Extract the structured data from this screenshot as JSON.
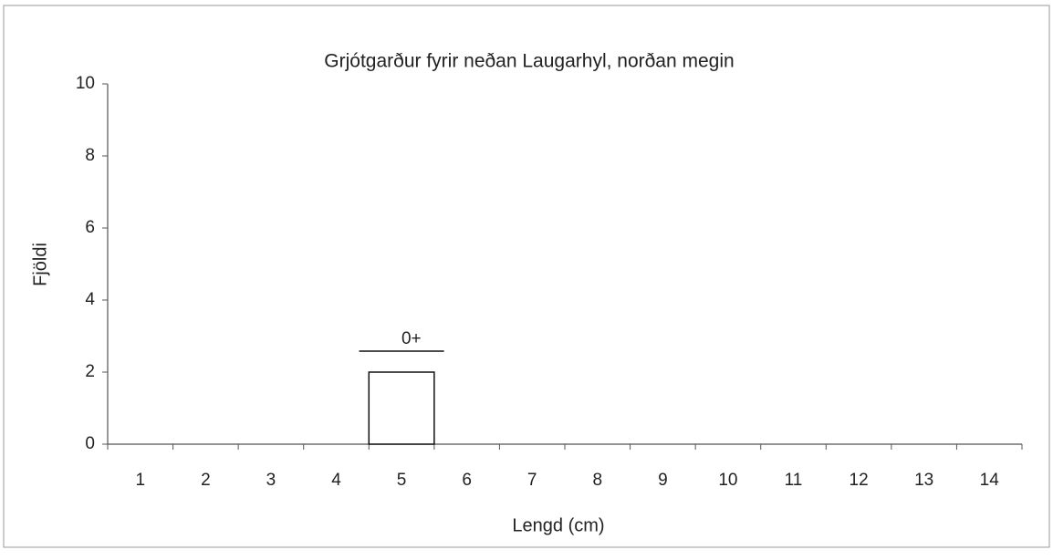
{
  "chart_data": {
    "type": "bar",
    "title": "Grjótgarður fyrir neðan Laugarhyl, norðan megin",
    "x_label": "Lengd (cm)",
    "y_label": "Fjöldi",
    "annotation": "0+",
    "categories": [
      "1",
      "2",
      "3",
      "4",
      "5",
      "6",
      "7",
      "8",
      "9",
      "10",
      "11",
      "12",
      "13",
      "14"
    ],
    "values": [
      0,
      0,
      0,
      0,
      2,
      0,
      0,
      0,
      0,
      0,
      0,
      0,
      0,
      0
    ],
    "color": "#ffffff",
    "ylim": [
      0,
      10
    ],
    "yticks": [
      0,
      2,
      4,
      6,
      8,
      10
    ],
    "grid": false
  }
}
